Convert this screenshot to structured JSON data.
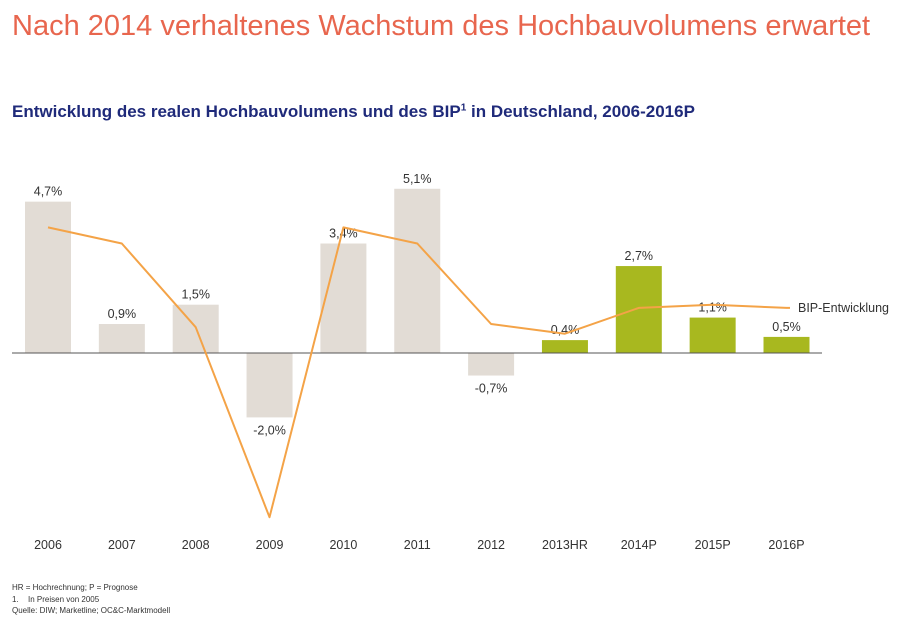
{
  "title": "Nach 2014 verhaltenes Wachstum des Hochbauvolumens erwartet",
  "subtitle": {
    "text": "Entwicklung des realen Hochbauvolumens und des BIP",
    "sup": "1",
    "suffix": " in Deutschland, 2006-2016P"
  },
  "chart_data": {
    "type": "bar",
    "categories": [
      "2006",
      "2007",
      "2008",
      "2009",
      "2010",
      "2011",
      "2012",
      "2013HR",
      "2014P",
      "2015P",
      "2016P"
    ],
    "series": [
      {
        "values": [
          4.7,
          0.9,
          1.5,
          -2.0,
          3.4,
          5.1,
          -0.7,
          0.4,
          2.7,
          1.1,
          0.5
        ],
        "labels": [
          "4,7%",
          "0,9%",
          "1,5%",
          "-2,0%",
          "3,4%",
          "5,1%",
          "-0,7%",
          "0,4%",
          "2,7%",
          "1,1%",
          "0,5%"
        ],
        "colors": [
          "#e2dcd5",
          "#e2dcd5",
          "#e2dcd5",
          "#e2dcd5",
          "#e2dcd5",
          "#e2dcd5",
          "#e2dcd5",
          "#a8b81f",
          "#a8b81f",
          "#a8b81f",
          "#a8b81f"
        ]
      },
      {
        "name": "BIP-Entwicklung",
        "type": "line",
        "color": "#f4a347",
        "values": [
          3.9,
          3.4,
          0.8,
          -5.1,
          3.9,
          3.4,
          0.9,
          0.6,
          1.4,
          1.5,
          1.4
        ]
      }
    ],
    "ylim": [
      -5.3,
      6.0
    ],
    "grid": false
  },
  "footnotes": {
    "abbrev": "HR = Hochrechnung; P = Prognose",
    "note_number": "1.",
    "note_text": "In Preisen von 2005",
    "source": "Quelle: DIW; Marketline; OC&C-Marktmodell"
  }
}
